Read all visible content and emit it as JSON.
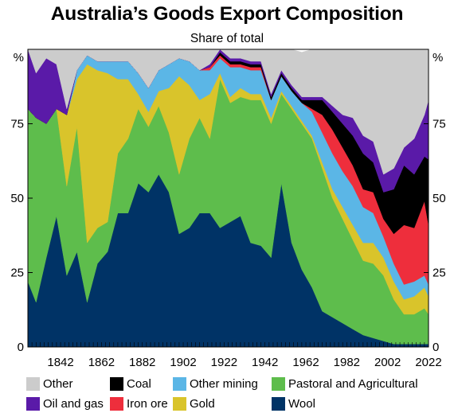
{
  "chart_data": {
    "type": "area",
    "stacking": "stacked-percent",
    "title": "Australia’s Goods Export Composition",
    "subtitle": "Share of total",
    "y_unit_label": "%",
    "ylim": [
      0,
      100
    ],
    "y_ticks": [
      "0",
      "25",
      "50",
      "75",
      "100"
    ],
    "y_tick_labels_shown": [
      "0",
      "25",
      "50",
      "75"
    ],
    "x_ticks": [
      "1842",
      "1862",
      "1882",
      "1902",
      "1922",
      "1942",
      "1962",
      "1982",
      "2002",
      "2022"
    ],
    "xlim": [
      1826,
      2022
    ],
    "grid": false,
    "legend_position": "bottom",
    "x": [
      1826,
      1830,
      1835,
      1840,
      1845,
      1850,
      1855,
      1860,
      1865,
      1870,
      1875,
      1880,
      1885,
      1890,
      1895,
      1900,
      1905,
      1910,
      1915,
      1920,
      1925,
      1930,
      1935,
      1940,
      1945,
      1950,
      1955,
      1960,
      1965,
      1970,
      1975,
      1980,
      1985,
      1990,
      1995,
      2000,
      2005,
      2010,
      2015,
      2020,
      2022
    ],
    "series": [
      {
        "name": "Wool",
        "color": "#003366",
        "values": [
          22,
          15,
          30,
          44,
          24,
          32,
          15,
          28,
          32,
          45,
          45,
          55,
          52,
          58,
          52,
          38,
          40,
          45,
          45,
          40,
          42,
          44,
          35,
          34,
          30,
          55,
          35,
          26,
          20,
          12,
          10,
          8,
          6,
          4,
          3,
          2,
          1,
          1,
          1,
          1,
          1
        ]
      },
      {
        "name": "Pastoral and Agricultural",
        "color": "#5ebd4c",
        "values": [
          58,
          62,
          45,
          36,
          30,
          42,
          20,
          12,
          10,
          20,
          25,
          25,
          22,
          23,
          20,
          20,
          30,
          32,
          25,
          50,
          40,
          40,
          48,
          49,
          45,
          30,
          45,
          49,
          50,
          48,
          40,
          35,
          30,
          25,
          25,
          22,
          15,
          10,
          10,
          12,
          10
        ]
      },
      {
        "name": "Gold",
        "color": "#d9c42b",
        "values": [
          0,
          0,
          0,
          0,
          24,
          16,
          60,
          53,
          50,
          25,
          20,
          5,
          5,
          5,
          15,
          33,
          18,
          6,
          15,
          2,
          2,
          3,
          2,
          2,
          2,
          1,
          1,
          1,
          1,
          2,
          3,
          4,
          5,
          6,
          7,
          6,
          6,
          5,
          6,
          7,
          6
        ]
      },
      {
        "name": "Other mining",
        "color": "#5bb6e6",
        "values": [
          0,
          0,
          0,
          0,
          0,
          3,
          3,
          3,
          4,
          6,
          6,
          7,
          8,
          7,
          8,
          6,
          8,
          10,
          8,
          5,
          10,
          7,
          8,
          8,
          6,
          5,
          5,
          6,
          8,
          10,
          12,
          12,
          13,
          12,
          10,
          7,
          6,
          5,
          5,
          4,
          4
        ]
      },
      {
        "name": "Iron ore",
        "color": "#ee2e3c",
        "values": [
          0,
          0,
          0,
          0,
          0,
          0,
          0,
          0,
          0,
          0,
          0,
          0,
          0,
          0,
          0,
          0,
          0,
          0,
          1,
          1,
          1,
          1,
          1,
          1,
          0,
          0,
          0,
          0,
          1,
          6,
          8,
          8,
          7,
          6,
          7,
          6,
          10,
          20,
          18,
          25,
          20
        ]
      },
      {
        "name": "Coal",
        "color": "#000000",
        "values": [
          0,
          0,
          0,
          0,
          0,
          0,
          0,
          0,
          0,
          0,
          0,
          0,
          0,
          0,
          0,
          0,
          0,
          0,
          0,
          1,
          1,
          1,
          1,
          1,
          1,
          1,
          1,
          1,
          3,
          5,
          6,
          8,
          10,
          12,
          10,
          9,
          15,
          20,
          18,
          15,
          22
        ]
      },
      {
        "name": "Oil and gas",
        "color": "#5a1aa8",
        "values": [
          20,
          15,
          22,
          15,
          2,
          0,
          0,
          0,
          0,
          0,
          0,
          0,
          0,
          0,
          0,
          0,
          0,
          0,
          1,
          1,
          1,
          1,
          1,
          1,
          1,
          1,
          1,
          1,
          1,
          1,
          2,
          3,
          6,
          6,
          7,
          6,
          7,
          6,
          12,
          14,
          20
        ]
      },
      {
        "name": "Other",
        "color": "#cccccc",
        "values": [
          0,
          8,
          3,
          5,
          20,
          7,
          2,
          4,
          4,
          4,
          4,
          8,
          13,
          7,
          5,
          3,
          4,
          7,
          5,
          0,
          3,
          3,
          4,
          4,
          15,
          7,
          12,
          15,
          16,
          16,
          19,
          22,
          23,
          29,
          31,
          42,
          40,
          33,
          30,
          22,
          17
        ]
      }
    ]
  },
  "legend": [
    {
      "label": "Other",
      "color": "#cccccc"
    },
    {
      "label": "Coal",
      "color": "#000000"
    },
    {
      "label": "Other mining",
      "color": "#5bb6e6"
    },
    {
      "label": "Pastoral and Agricultural",
      "color": "#5ebd4c"
    },
    {
      "label": "Oil and gas",
      "color": "#5a1aa8"
    },
    {
      "label": "Iron ore",
      "color": "#ee2e3c"
    },
    {
      "label": "Gold",
      "color": "#d9c42b"
    },
    {
      "label": "Wool",
      "color": "#003366"
    }
  ]
}
